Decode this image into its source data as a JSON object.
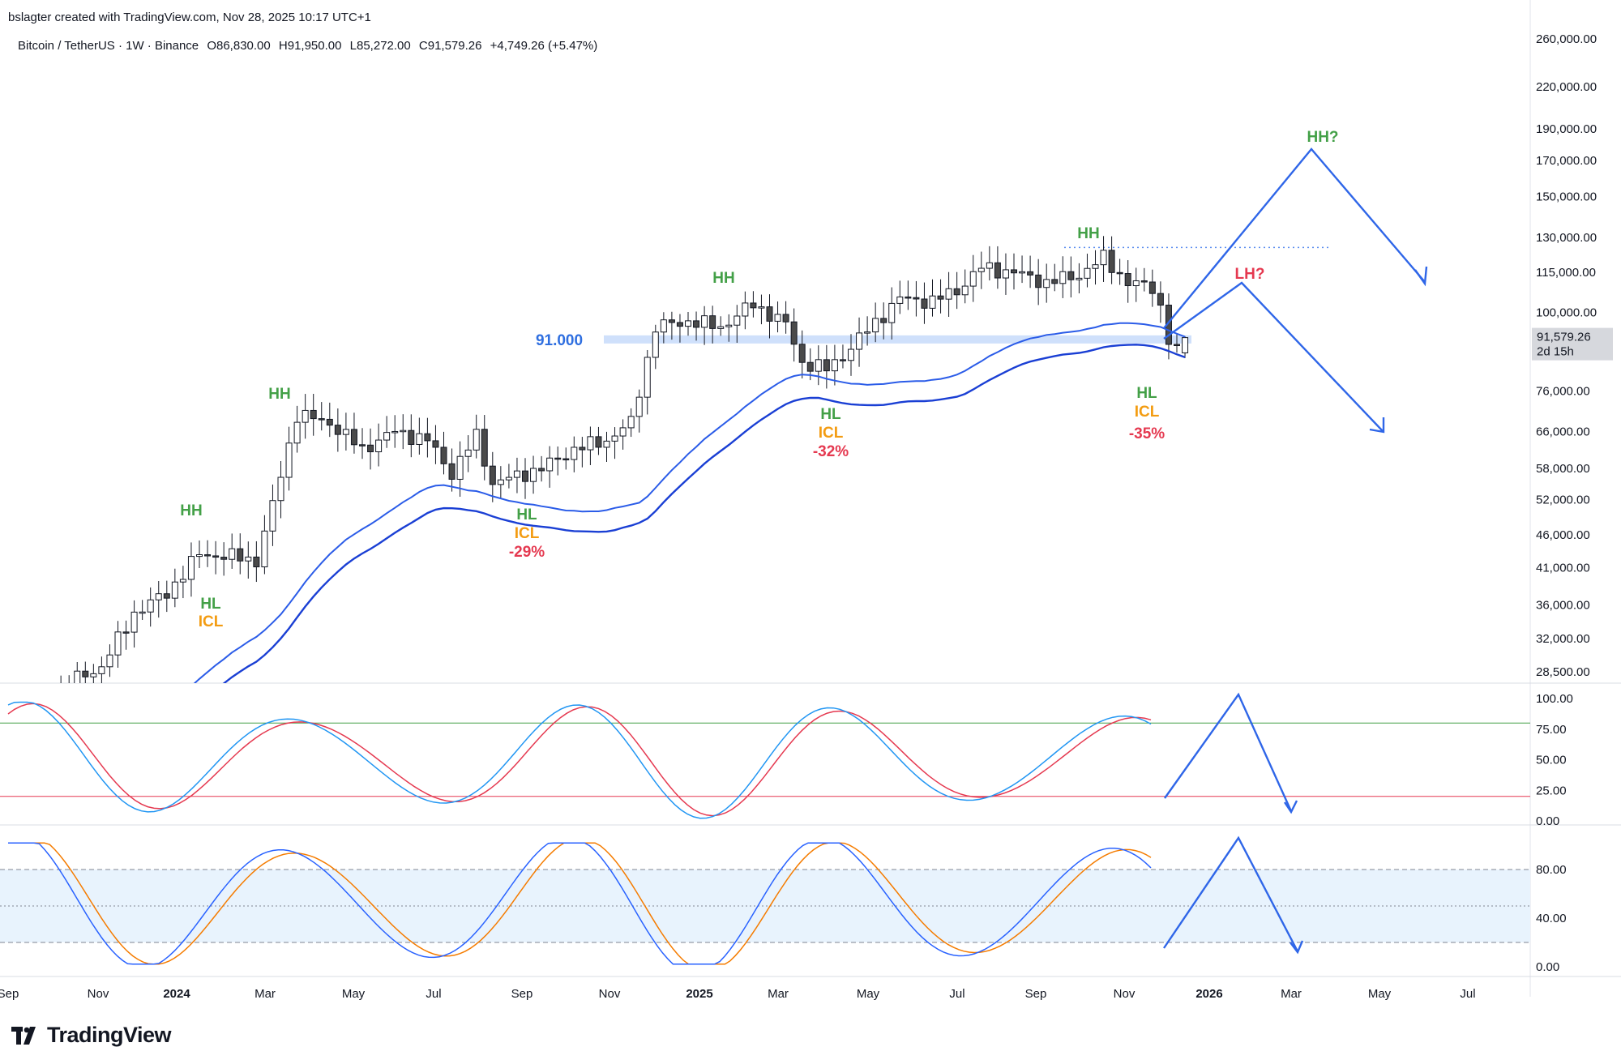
{
  "header": {
    "credit": "bslagter created with TradingView.com, Nov 28, 2025 10:17 UTC+1"
  },
  "legend": {
    "symbol": "Bitcoin / TetherUS · 1W · Binance",
    "open": "O86,830.00",
    "high": "H91,950.00",
    "low": "L85,272.00",
    "close": "C91,579.26",
    "change": "+4,749.26 (+5.47%)"
  },
  "brand": {
    "name": "TradingView",
    "logo_icon": "tradingview-logo-icon"
  },
  "price_badge": {
    "price": "91,579.26",
    "countdown": "2d 15h"
  },
  "colors": {
    "up": "#ffffff",
    "down": "#4a4a4a",
    "ma": "#1a3fd4",
    "ma2": "#2b5ce8",
    "support": "#cfe0fb",
    "green": "#43a047",
    "orange": "#f39c12",
    "red": "#e53950",
    "arrow": "#2f66e8"
  },
  "chart_data": [
    {
      "type": "candlestick",
      "scale": "log",
      "ylim": [
        27500,
        265000
      ],
      "y_ticks": [
        "260,000.00",
        "220,000.00",
        "190,000.00",
        "170,000.00",
        "150,000.00",
        "130,000.00",
        "115,000.00",
        "100,000.00",
        "91,579.26",
        "76,000.00",
        "66,000.00",
        "58,000.00",
        "52,000.00",
        "46,000.00",
        "41,000.00",
        "36,000.00",
        "32,000.00",
        "28,500.00"
      ],
      "x_ticks": [
        "Sep",
        "Nov",
        "2024",
        "Mar",
        "May",
        "Jul",
        "Sep",
        "Nov",
        "2025",
        "Mar",
        "May",
        "Jul",
        "Sep",
        "Nov",
        "2026",
        "Mar",
        "May",
        "Jul"
      ],
      "support_label": "91.000",
      "annotations": [
        {
          "label": "HH",
          "color": "green"
        },
        {
          "label": "HL",
          "color": "green"
        },
        {
          "label": "ICL",
          "color": "orange"
        },
        {
          "label": "HH",
          "color": "green"
        },
        {
          "label": "HL",
          "color": "green"
        },
        {
          "label": "ICL",
          "color": "orange"
        },
        {
          "label": "-29%",
          "color": "red"
        },
        {
          "label": "HH",
          "color": "green"
        },
        {
          "label": "HL",
          "color": "green"
        },
        {
          "label": "ICL",
          "color": "orange"
        },
        {
          "label": "-32%",
          "color": "red"
        },
        {
          "label": "HH",
          "color": "green"
        },
        {
          "label": "HL",
          "color": "green"
        },
        {
          "label": "ICL",
          "color": "orange"
        },
        {
          "label": "-35%",
          "color": "red"
        },
        {
          "label": "HH?",
          "color": "green"
        },
        {
          "label": "LH?",
          "color": "red"
        }
      ]
    },
    {
      "type": "line",
      "name_hidden": "oscillator 1",
      "ylim": [
        0,
        100
      ],
      "y_ticks": [
        "100.00",
        "75.00",
        "50.00",
        "25.00",
        "0.00"
      ],
      "levels": [
        80,
        20
      ]
    },
    {
      "type": "line",
      "ylim": [
        0,
        110
      ],
      "y_ticks": [
        "80.00",
        "40.00",
        "0.00"
      ],
      "levels": [
        80,
        50,
        20
      ]
    }
  ]
}
